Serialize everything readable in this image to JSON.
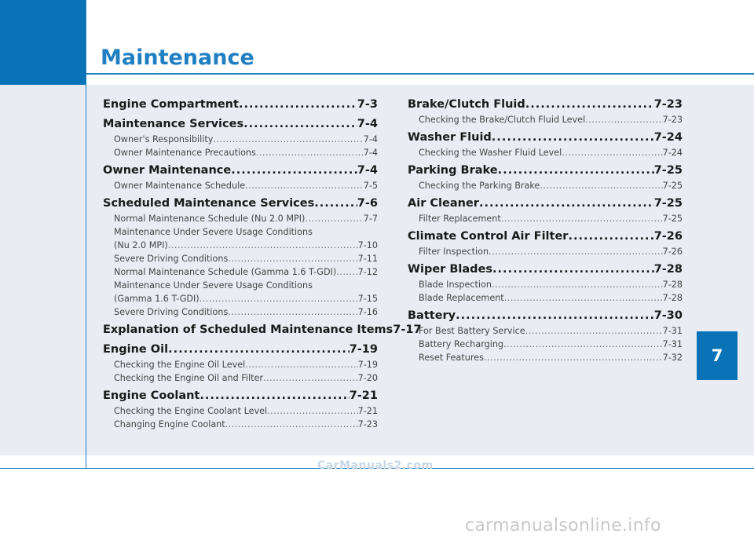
{
  "header": {
    "title": "Maintenance"
  },
  "chapter_tab": "7",
  "toc_left": [
    {
      "kind": "main",
      "label": "Engine Compartment",
      "page": "7-3"
    },
    {
      "kind": "main",
      "label": "Maintenance Services",
      "page": "7-4"
    },
    {
      "kind": "sub",
      "label": "Owner's Responsibility",
      "page": "7-4"
    },
    {
      "kind": "sub",
      "label": "Owner Maintenance Precautions",
      "page": "7-4"
    },
    {
      "kind": "main",
      "label": "Owner Maintenance",
      "page": "7-4"
    },
    {
      "kind": "sub",
      "label": "Owner Maintenance Schedule",
      "page": "7-5"
    },
    {
      "kind": "main",
      "label": "Scheduled Maintenance Services",
      "page": "7-6"
    },
    {
      "kind": "sub",
      "label": "Normal Maintenance Schedule (Nu 2.0 MPI)",
      "page": "7-7"
    },
    {
      "kind": "subwrap",
      "label": "Maintenance Under Severe Usage Conditions"
    },
    {
      "kind": "sub",
      "label": "(Nu 2.0 MPI)",
      "page": "7-10"
    },
    {
      "kind": "sub",
      "label": "Severe Driving Conditions",
      "page": "7-11"
    },
    {
      "kind": "sub",
      "label": "Normal Maintenance Schedule (Gamma 1.6 T-GDI)",
      "page": "7-12"
    },
    {
      "kind": "subwrap",
      "label": "Maintenance Under Severe Usage Conditions"
    },
    {
      "kind": "sub",
      "label": "(Gamma 1.6 T-GDI)",
      "page": "7-15"
    },
    {
      "kind": "sub",
      "label": "Severe Driving Conditions",
      "page": "7-16"
    },
    {
      "kind": "main",
      "label": "Explanation of Scheduled Maintenance Items",
      "page": "7-17"
    },
    {
      "kind": "main",
      "label": "Engine Oil",
      "page": "7-19"
    },
    {
      "kind": "sub",
      "label": "Checking the Engine Oil Level",
      "page": "7-19"
    },
    {
      "kind": "sub",
      "label": "Checking the Engine Oil and Filter",
      "page": "7-20"
    },
    {
      "kind": "main",
      "label": "Engine Coolant",
      "page": "7-21"
    },
    {
      "kind": "sub",
      "label": "Checking the Engine Coolant Level",
      "page": "7-21"
    },
    {
      "kind": "sub",
      "label": "Changing Engine Coolant",
      "page": "7-23"
    }
  ],
  "toc_right": [
    {
      "kind": "main",
      "label": "Brake/Clutch Fluid",
      "page": "7-23"
    },
    {
      "kind": "sub",
      "label": "Checking the Brake/Clutch Fluid Level",
      "page": "7-23"
    },
    {
      "kind": "main",
      "label": "Washer Fluid",
      "page": "7-24"
    },
    {
      "kind": "sub",
      "label": "Checking the Washer Fluid Level",
      "page": "7-24"
    },
    {
      "kind": "main",
      "label": "Parking Brake",
      "page": "7-25"
    },
    {
      "kind": "sub",
      "label": "Checking the Parking Brake",
      "page": "7-25"
    },
    {
      "kind": "main",
      "label": "Air Cleaner",
      "page": "7-25"
    },
    {
      "kind": "sub",
      "label": "Filter Replacement",
      "page": "7-25"
    },
    {
      "kind": "main",
      "label": "Climate Control Air Filter",
      "page": "7-26"
    },
    {
      "kind": "sub",
      "label": "Filter Inspection",
      "page": "7-26"
    },
    {
      "kind": "main",
      "label": "Wiper Blades",
      "page": "7-28"
    },
    {
      "kind": "sub",
      "label": "Blade Inspection",
      "page": "7-28"
    },
    {
      "kind": "sub",
      "label": "Blade Replacement",
      "page": "7-28"
    },
    {
      "kind": "main",
      "label": "Battery",
      "page": "7-30"
    },
    {
      "kind": "sub",
      "label": "For Best Battery Service",
      "page": "7-31"
    },
    {
      "kind": "sub",
      "label": "Battery Recharging",
      "page": "7-31"
    },
    {
      "kind": "sub",
      "label": "Reset Features",
      "page": "7-32"
    }
  ],
  "watermarks": {
    "top": "CarManuals2.com",
    "bottom": "carmanualsonline.info"
  },
  "colors": {
    "accent": "#1f7fc2",
    "block": "#0a73b8",
    "panel": "#e9edf3"
  }
}
